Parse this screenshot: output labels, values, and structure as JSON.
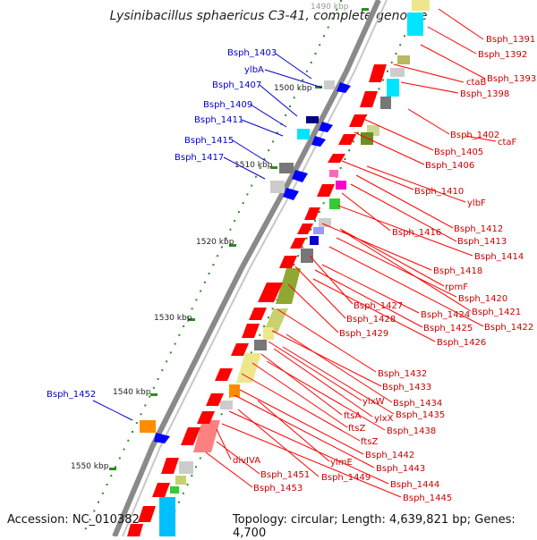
{
  "title": "Lysinibacillus sphaericus C3-41, complete genome",
  "footer": {
    "accession": "Accession: NC_010382",
    "topology": "Topology: circular; Length: 4,639,821 bp; Genes: 4,700"
  },
  "kbp_labels": [
    "1490 kbp",
    "1500 kbp",
    "1510 kbp",
    "1520 kbp",
    "1530 kbp",
    "1540 kbp",
    "1550 kbp"
  ],
  "left_labels": [
    "Bsph_1403",
    "ylbA",
    "Bsph_1407",
    "Bsph_1409",
    "Bsph_1411",
    "Bsph_1415",
    "Bsph_1417",
    "Bsph_1452"
  ],
  "right_labels": [
    "Bsph_1391",
    "Bsph_1392",
    "Bsph_1393",
    "ctaB",
    "Bsph_1398",
    "Bsph_1402",
    "ctaF",
    "Bsph_1405",
    "Bsph_1406",
    "Bsph_1410",
    "ylbF",
    "Bsph_1412",
    "Bsph_1413",
    "Bsph_1416",
    "Bsph_1414",
    "Bsph_1418",
    "rpmF",
    "Bsph_1420",
    "Bsph_1421",
    "Bsph_1427",
    "Bsph_1424",
    "Bsph_1422",
    "Bsph_1428",
    "Bsph_1425",
    "Bsph_1426",
    "Bsph_1429",
    "Bsph_1432",
    "Bsph_1433",
    "ylxW",
    "Bsph_1434",
    "ftsA",
    "ylxX",
    "Bsph_1435",
    "ftsZ",
    "Bsph_1438",
    "ftsZ",
    "Bsph_1442",
    "divIVA",
    "ylmE",
    "Bsph_1443",
    "Bsph_1451",
    "Bsph_1449",
    "Bsph_1444",
    "Bsph_1453",
    "Bsph_1445"
  ],
  "colors": {
    "forward": "#ff0000",
    "reverse": "#0000ff",
    "backbone": "#888888",
    "tick": "#2e8b22"
  }
}
